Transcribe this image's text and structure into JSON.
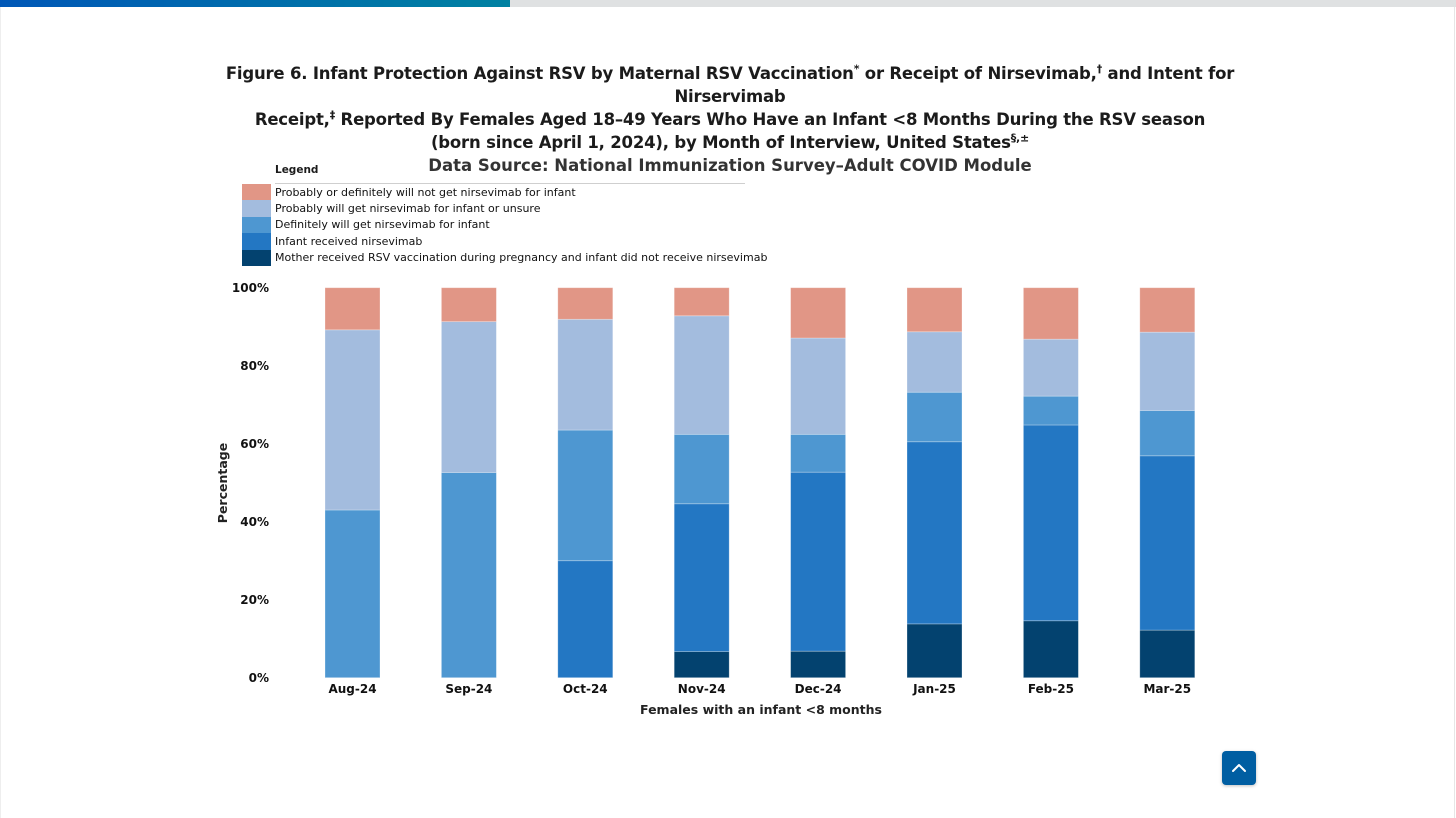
{
  "reading_progress": {
    "percent": 35
  },
  "figure": {
    "title_parts": {
      "p1": "Figure 6. Infant Protection Against RSV by Maternal RSV Vaccination",
      "s1": "*",
      "p2": " or Receipt of Nirsevimab,",
      "s2": "†",
      "p3": " and Intent for Nirservimab",
      "p4": "Receipt,",
      "s3": "‡",
      "p5": " Reported By Females Aged 18–49 Years Who Have an Infant <8 Months During the RSV season",
      "p6": "(born since April 1, 2024), by Month of Interview, United States",
      "s4": "§,±"
    },
    "data_source": "Data Source: National Immunization Survey–Adult COVID Module"
  },
  "legend": {
    "title": "Legend",
    "items": [
      {
        "label": "Probably or definitely will not get nirsevimab for infant",
        "color": "#E19686"
      },
      {
        "label": "Probably will get nirsevimab for infant or unsure",
        "color": "#A3BCDE"
      },
      {
        "label": "Definitely will get nirsevimab for infant",
        "color": "#4E97D1"
      },
      {
        "label": "Infant received nirsevimab",
        "color": "#2377C3"
      },
      {
        "label": "Mother received RSV vaccination during pregnancy and infant did not receive nirsevimab",
        "color": "#03426F"
      }
    ]
  },
  "back_to_top": {
    "icon": "chevron-up-icon",
    "color": "#005EA2"
  },
  "chart_data": {
    "type": "bar",
    "stacked": true,
    "title": "Infant Protection Against RSV by Maternal RSV Vaccination or Receipt of Nirsevimab, and Intent for Nirservimab Receipt, by Month of Interview",
    "xlabel": "Females with an infant <8 months",
    "ylabel": "Percentage",
    "ylim": [
      0,
      100
    ],
    "yticks": [
      "0%",
      "20%",
      "40%",
      "60%",
      "80%",
      "100%"
    ],
    "ytick_values": [
      0,
      20,
      40,
      60,
      80,
      100
    ],
    "grid": false,
    "legend_position": "top-left",
    "categories": [
      "Aug-24",
      "Sep-24",
      "Oct-24",
      "Nov-24",
      "Dec-24",
      "Jan-25",
      "Feb-25",
      "Mar-25"
    ],
    "series": [
      {
        "name": "Mother received RSV vaccination during pregnancy and infant did not receive nirsevimab",
        "color": "#03426F",
        "values": [
          0,
          0,
          0,
          6.7,
          6.8,
          13.8,
          14.6,
          12.2
        ]
      },
      {
        "name": "Infant received nirsevimab",
        "color": "#2377C3",
        "values": [
          0,
          0,
          30.0,
          37.9,
          45.9,
          46.7,
          50.2,
          44.7
        ]
      },
      {
        "name": "Definitely will get nirsevimab for infant",
        "color": "#4E97D1",
        "values": [
          43.0,
          52.6,
          33.5,
          17.8,
          9.7,
          12.7,
          7.4,
          11.6
        ]
      },
      {
        "name": "Probably will get nirsevimab for infant or unsure",
        "color": "#A3BCDE",
        "values": [
          46.2,
          38.7,
          28.4,
          30.4,
          24.7,
          15.5,
          14.6,
          20.1
        ]
      },
      {
        "name": "Probably or definitely will not get nirsevimab for infant",
        "color": "#E19686",
        "values": [
          10.8,
          8.7,
          8.1,
          7.2,
          12.9,
          11.3,
          13.2,
          11.4
        ]
      }
    ]
  }
}
